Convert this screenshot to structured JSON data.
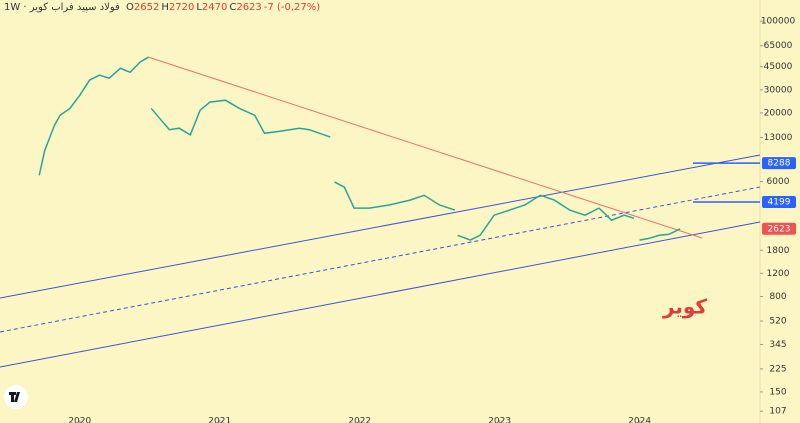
{
  "chart_data": {
    "type": "line",
    "title": "فولاد سپید فراب کویر · 1W",
    "ohlc": [
      {
        "prefix": "O",
        "value": 2652
      },
      {
        "prefix": "H",
        "value": 2720
      },
      {
        "prefix": "L",
        "value": 2470
      },
      {
        "prefix": "C",
        "value": 2623
      }
    ],
    "change": "-7 (-0,27%)",
    "annotation": "کویر",
    "log_scale": true,
    "x": [
      2019.71,
      2019.75,
      2019.82,
      2019.86,
      2019.93,
      2020.0,
      2020.07,
      2020.14,
      2020.21,
      2020.29,
      2020.36,
      2020.43,
      2020.49,
      2020.5,
      2020.51,
      2020.57,
      2020.64,
      2020.71,
      2020.79,
      2020.86,
      2020.93,
      2021.04,
      2021.14,
      2021.25,
      2021.32,
      2021.43,
      2021.57,
      2021.64,
      2021.79,
      2021.8,
      2021.82,
      2021.89,
      2021.96,
      2022.07,
      2022.21,
      2022.36,
      2022.46,
      2022.57,
      2022.68,
      2022.69,
      2022.7,
      2022.79,
      2022.86,
      2022.96,
      2023.07,
      2023.18,
      2023.29,
      2023.39,
      2023.5,
      2023.61,
      2023.71,
      2023.8,
      2023.89,
      2023.96,
      2023.98,
      2024.0,
      2024.07,
      2024.14,
      2024.21,
      2024.29
    ],
    "series": [
      {
        "color": "#26a69a",
        "values": [
          6700,
          10400,
          16200,
          19200,
          21700,
          27300,
          35600,
          38800,
          36800,
          43800,
          40800,
          48800,
          53200,
          null,
          21700,
          18200,
          14900,
          15300,
          13600,
          21000,
          24200,
          25000,
          21700,
          19200,
          14000,
          14500,
          15300,
          14900,
          13100,
          null,
          5950,
          5450,
          3770,
          3770,
          3980,
          4340,
          4720,
          3980,
          3640,
          null,
          2340,
          2150,
          2340,
          3330,
          3640,
          3980,
          4720,
          4340,
          3640,
          3330,
          3770,
          3050,
          3330,
          3150,
          null,
          2150,
          2220,
          2340,
          2380,
          2623
        ]
      }
    ],
    "xlim": [
      2019.43,
      2024.86
    ],
    "xticks": [
      {
        "value": 2020,
        "label": "2020"
      },
      {
        "value": 2021,
        "label": "2021"
      },
      {
        "value": 2022,
        "label": "2022"
      },
      {
        "value": 2023,
        "label": "2023"
      },
      {
        "value": 2024,
        "label": "2024"
      }
    ],
    "ylim": [
      87,
      145000
    ],
    "yticks": [
      100000,
      65000,
      45000,
      30000,
      20000,
      13000,
      6000,
      1800,
      1200,
      800,
      520,
      345,
      225,
      150,
      107
    ],
    "price_labels": [
      {
        "value": 8288,
        "color": "#2962ff"
      },
      {
        "value": 4199,
        "color": "#2962ff"
      },
      {
        "value": 2623,
        "color": "#ef5350"
      }
    ]
  }
}
